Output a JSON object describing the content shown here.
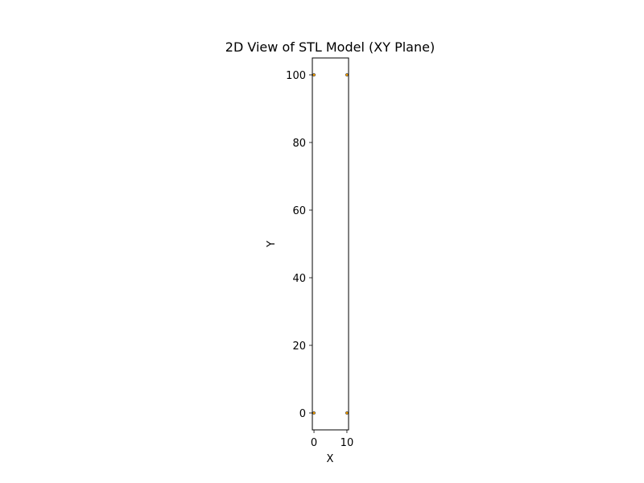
{
  "chart_data": {
    "type": "scatter",
    "title": "2D View of STL Model (XY Plane)",
    "xlabel": "X",
    "ylabel": "Y",
    "xlim": [
      -0.5,
      10.5
    ],
    "ylim": [
      -5,
      105
    ],
    "x_ticks": [
      0,
      10
    ],
    "y_ticks": [
      0,
      20,
      40,
      60,
      80,
      100
    ],
    "grid": false,
    "points": [
      {
        "x": 0,
        "y": 0
      },
      {
        "x": 10,
        "y": 0
      },
      {
        "x": 0,
        "y": 100
      },
      {
        "x": 10,
        "y": 100
      }
    ],
    "marker_color": "#ffa500",
    "marker_edge_color": "#333333"
  }
}
